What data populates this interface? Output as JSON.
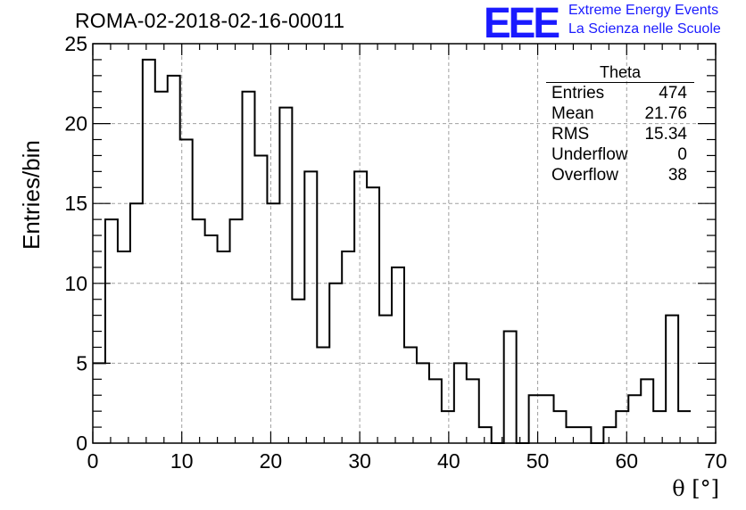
{
  "title": "ROMA-02-2018-02-16-00011",
  "logo": {
    "mark": "EEE",
    "line1": "Extreme Energy Events",
    "line2": "La Scienza nelle Scuole",
    "color": "#1a1aff"
  },
  "stats_box": {
    "title": "Theta",
    "rows": [
      {
        "label": "Entries",
        "value": "474"
      },
      {
        "label": "Mean",
        "value": "21.76"
      },
      {
        "label": "RMS",
        "value": "15.34"
      },
      {
        "label": "Underflow",
        "value": "0"
      },
      {
        "label": "Overflow",
        "value": "38"
      }
    ]
  },
  "chart_data": {
    "type": "bar",
    "histogram": true,
    "xlabel": "θ [°]",
    "ylabel": "Entries/bin",
    "xlim": [
      0,
      70
    ],
    "ylim": [
      0,
      25
    ],
    "xticks": [
      0,
      10,
      20,
      30,
      40,
      50,
      60,
      70
    ],
    "yticks": [
      0,
      5,
      10,
      15,
      20,
      25
    ],
    "grid": true,
    "bin_edges": [
      0,
      1.4,
      2.8,
      4.2,
      5.6,
      7,
      8.4,
      9.8,
      11.2,
      12.6,
      14,
      15.4,
      16.8,
      18.2,
      19.6,
      21,
      22.4,
      23.8,
      25.2,
      26.6,
      28,
      29.4,
      30.8,
      32.2,
      33.6,
      35,
      36.4,
      37.8,
      39.2,
      40.6,
      42,
      43.4,
      44.8,
      46.2,
      47.6,
      49,
      50.4,
      51.8,
      53.2,
      54.6,
      56,
      57.4,
      58.8,
      60.2,
      61.6,
      63,
      64.4,
      65.8,
      67.2
    ],
    "values": [
      5,
      14,
      12,
      15,
      24,
      22,
      23,
      19,
      14,
      13,
      12,
      14,
      22,
      18,
      15,
      21,
      9,
      17,
      6,
      10,
      12,
      17,
      16,
      8,
      11,
      6,
      5,
      4,
      2,
      5,
      4,
      1,
      0,
      7,
      0,
      3,
      3,
      2,
      1,
      1,
      0,
      1,
      2,
      3,
      4,
      2,
      8,
      2
    ],
    "line_color": "#000000"
  }
}
